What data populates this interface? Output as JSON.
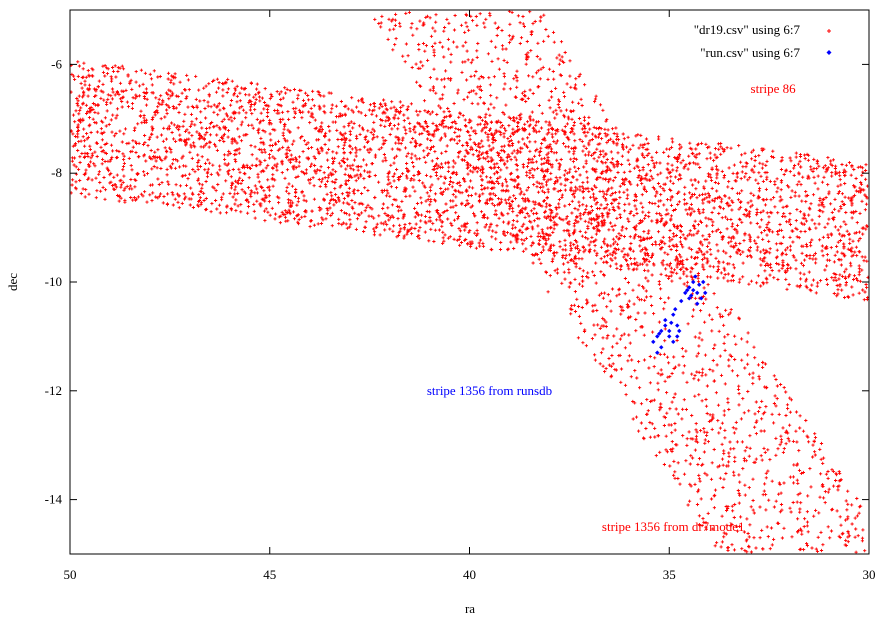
{
  "chart_data": {
    "type": "scatter",
    "title": "",
    "xlabel": "ra",
    "ylabel": "dec",
    "xlim": [
      50,
      30
    ],
    "ylim": [
      -15,
      -5
    ],
    "x_ticks": [
      50,
      45,
      40,
      35,
      30
    ],
    "x_tick_labels": [
      "50",
      "45",
      "40",
      "35",
      "30"
    ],
    "y_ticks": [
      -6,
      -8,
      -10,
      -12,
      -14
    ],
    "y_tick_labels": [
      "-6",
      "-8",
      "-10",
      "-12",
      "-14"
    ],
    "grid": false,
    "legend_position": "top-right",
    "series": [
      {
        "name": "\"dr19.csv\" using 6:7",
        "color": "#ff0000",
        "marker": "plus",
        "regions": [
          {
            "shape": "band",
            "description": "stripe 86",
            "polygon": [
              [
                50,
                -5.9
              ],
              [
                30,
                -7.8
              ],
              [
                30,
                -10.35
              ],
              [
                50,
                -8.4
              ]
            ]
          },
          {
            "shape": "band",
            "description": "stripe 1356 from dr7mode1",
            "polygon": [
              [
                42.6,
                -5.0
              ],
              [
                38.2,
                -5.0
              ],
              [
                29.4,
                -15.0
              ],
              [
                33.8,
                -15.0
              ]
            ]
          }
        ]
      },
      {
        "name": "\"run.csv\" using 6:7",
        "color": "#0000ff",
        "marker": "diamond",
        "points": [
          [
            35.4,
            -11.1
          ],
          [
            35.3,
            -11.0
          ],
          [
            35.3,
            -11.3
          ],
          [
            35.2,
            -10.9
          ],
          [
            35.2,
            -11.2
          ],
          [
            35.1,
            -10.8
          ],
          [
            35.1,
            -10.7
          ],
          [
            35.0,
            -10.9
          ],
          [
            35.0,
            -11.0
          ],
          [
            34.9,
            -10.6
          ],
          [
            34.9,
            -11.1
          ],
          [
            34.85,
            -10.5
          ],
          [
            34.8,
            -10.8
          ],
          [
            34.8,
            -11.0
          ],
          [
            34.75,
            -10.9
          ],
          [
            34.6,
            -10.2
          ],
          [
            34.55,
            -10.15
          ],
          [
            34.5,
            -10.1
          ],
          [
            34.5,
            -10.3
          ],
          [
            34.45,
            -10.25
          ],
          [
            34.4,
            -10.0
          ],
          [
            34.35,
            -9.9
          ],
          [
            34.3,
            -10.2
          ],
          [
            34.3,
            -10.4
          ],
          [
            34.25,
            -10.05
          ],
          [
            34.2,
            -10.3
          ],
          [
            34.15,
            -10.0
          ],
          [
            34.1,
            -10.2
          ],
          [
            35.25,
            -10.95
          ],
          [
            34.95,
            -10.75
          ],
          [
            34.7,
            -10.35
          ],
          [
            34.4,
            -10.15
          ]
        ]
      }
    ],
    "annotations": [
      {
        "text": "stripe 86",
        "x": 32.4,
        "y": -6.45,
        "color": "#ff0000"
      },
      {
        "text": "stripe 1356 from runsdb",
        "x": 39.5,
        "y": -12.0,
        "color": "#0000ff"
      },
      {
        "text": "stripe 1356 from dr7mode1",
        "x": 34.9,
        "y": -14.5,
        "color": "#ff0000"
      }
    ]
  }
}
